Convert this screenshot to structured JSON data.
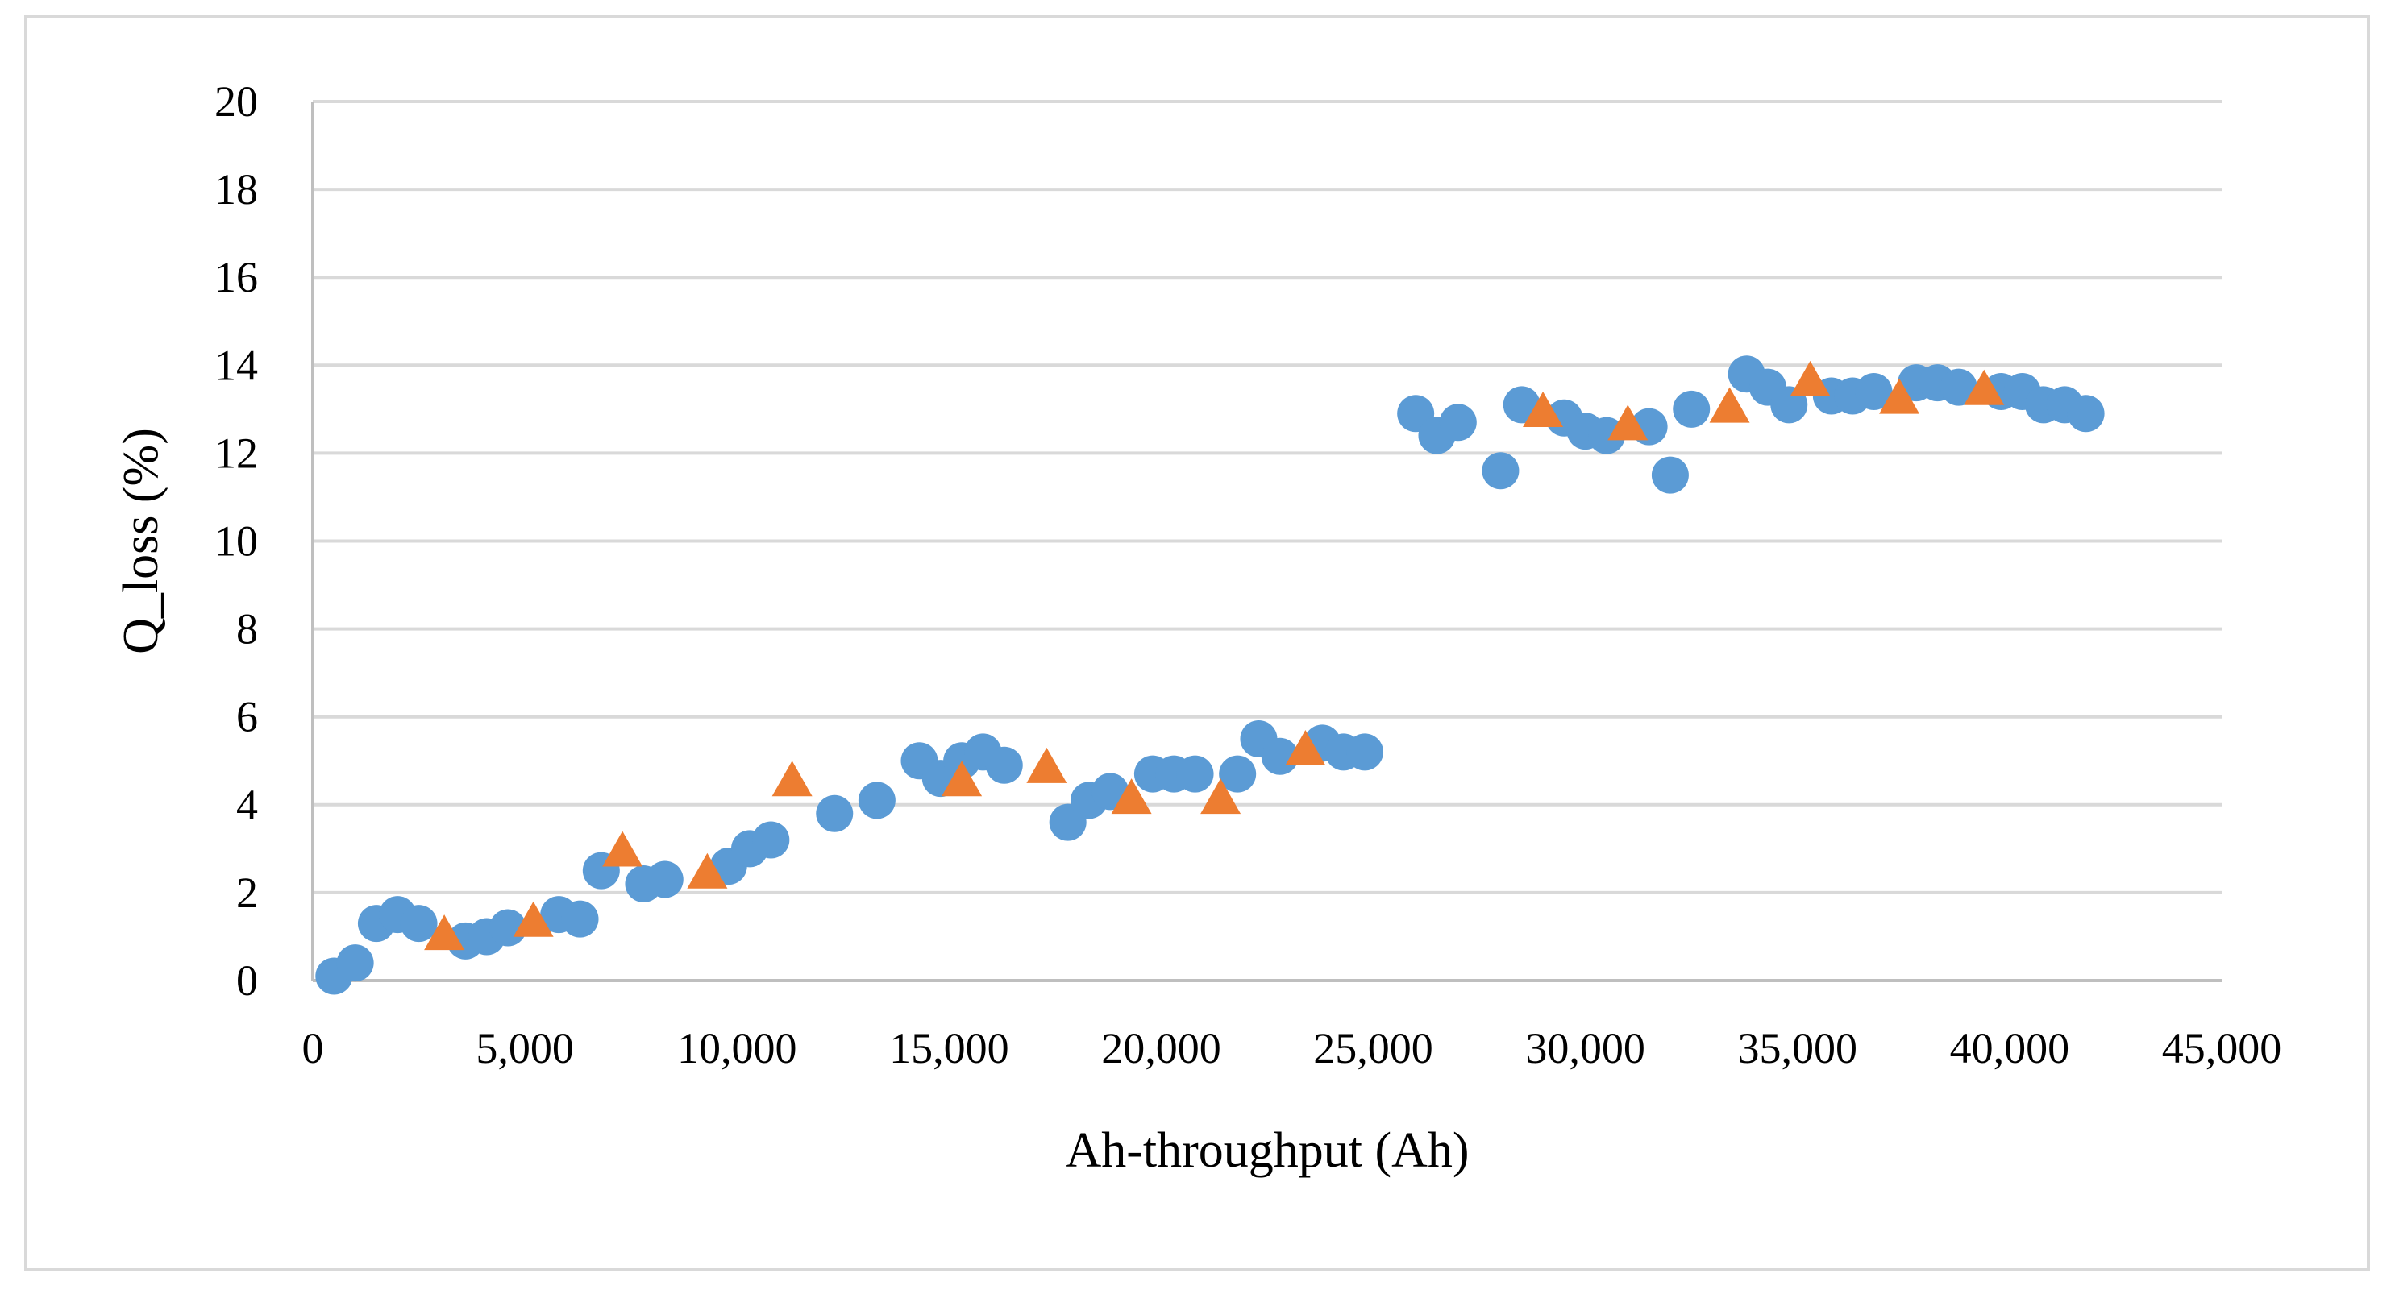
{
  "chart_data": {
    "type": "scatter",
    "title": "",
    "xlabel": "Ah-throughput (Ah)",
    "ylabel": "Q_loss (%)",
    "xlim": [
      0,
      45000
    ],
    "ylim": [
      0,
      20
    ],
    "x_ticks": [
      "0",
      "5,000",
      "10,000",
      "15,000",
      "20,000",
      "25,000",
      "30,000",
      "35,000",
      "40,000",
      "45,000"
    ],
    "y_ticks": [
      "0",
      "2",
      "4",
      "6",
      "8",
      "10",
      "12",
      "14",
      "16",
      "18",
      "20"
    ],
    "grid": "horizontal",
    "legend": "none",
    "series": [
      {
        "name": "circles",
        "marker": "circle",
        "color": "#5b9bd5",
        "x": [
          500,
          1000,
          1500,
          2000,
          2500,
          3600,
          4100,
          4600,
          5800,
          6300,
          6800,
          7800,
          8300,
          9800,
          10300,
          10800,
          12300,
          13300,
          14300,
          14800,
          15300,
          15800,
          16300,
          17800,
          18300,
          18800,
          19800,
          20300,
          20800,
          21800,
          22300,
          22800,
          23800,
          24300,
          24800,
          26000,
          26500,
          27000,
          28000,
          28500,
          29500,
          30000,
          30500,
          31500,
          32000,
          32500,
          33800,
          34300,
          34800,
          35800,
          36300,
          36800,
          37800,
          38300,
          38800,
          39800,
          40300,
          40800,
          41300,
          41800
        ],
        "y": [
          0.1,
          0.4,
          1.3,
          1.5,
          1.3,
          0.9,
          1.0,
          1.2,
          1.5,
          1.4,
          2.5,
          2.2,
          2.3,
          2.6,
          3.0,
          3.2,
          3.8,
          4.1,
          5.0,
          4.6,
          5.0,
          5.2,
          4.9,
          3.6,
          4.1,
          4.3,
          4.7,
          4.7,
          4.7,
          4.7,
          5.5,
          5.1,
          5.4,
          5.2,
          5.2,
          12.9,
          12.4,
          12.7,
          11.6,
          13.1,
          12.8,
          12.5,
          12.4,
          12.6,
          11.5,
          13.0,
          13.8,
          13.5,
          13.1,
          13.3,
          13.3,
          13.4,
          13.6,
          13.6,
          13.5,
          13.4,
          13.4,
          13.1,
          13.1,
          12.9
        ]
      },
      {
        "name": "triangles",
        "marker": "triangle",
        "color": "#ed7d31",
        "x": [
          3100,
          5200,
          7300,
          9300,
          11300,
          15300,
          17300,
          19300,
          21400,
          23400,
          29000,
          31000,
          33400,
          35300,
          37400,
          39400
        ],
        "y": [
          1.0,
          1.3,
          2.9,
          2.4,
          4.5,
          4.5,
          4.8,
          4.1,
          4.1,
          5.2,
          12.9,
          12.6,
          13.0,
          13.6,
          13.2,
          13.4
        ]
      }
    ]
  }
}
